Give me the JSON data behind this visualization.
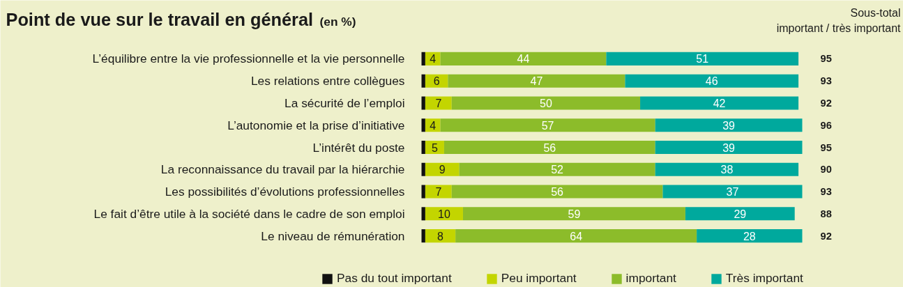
{
  "chart_data": {
    "type": "bar",
    "orientation": "horizontal",
    "stacked": true,
    "title": "Point de vue sur le travail en général",
    "subtitle": "(en %)",
    "categories": [
      "L’équilibre entre la vie professionnelle et la vie personnelle",
      "Les relations entre collègues",
      "La sécurité de l’emploi",
      "L’autonomie et la prise d’initiative",
      "L’intérêt du poste",
      "La reconnaissance du travail par la hiérarchie",
      "Les possibilités d’évolutions professionnelles",
      "Le fait d’être utile à la société dans le cadre de son emploi",
      "Le niveau de rémunération"
    ],
    "series": [
      {
        "name": "Pas du tout important",
        "color": "#111111",
        "values": [
          1,
          1,
          1,
          1,
          1,
          1,
          1,
          1,
          1
        ],
        "value_labels": [
          null,
          null,
          null,
          null,
          null,
          null,
          null,
          null,
          null
        ]
      },
      {
        "name": "Peu important",
        "color": "#c3d500",
        "values": [
          4,
          6,
          7,
          4,
          5,
          9,
          7,
          10,
          8
        ]
      },
      {
        "name": "important",
        "color": "#8cbc2a",
        "values": [
          44,
          47,
          50,
          57,
          56,
          52,
          56,
          59,
          64
        ]
      },
      {
        "name": "Très important",
        "color": "#00a99d",
        "values": [
          51,
          46,
          42,
          39,
          39,
          38,
          37,
          29,
          28
        ]
      }
    ],
    "data_labels": true,
    "xlim": [
      0,
      101
    ],
    "tick_labels": "y",
    "grid": false,
    "legend": "bottom",
    "annotations": [
      "Sous-total\nimportant / très important",
      "95",
      "93",
      "92",
      "96",
      "95",
      "90",
      "93",
      "88",
      "92"
    ]
  }
}
